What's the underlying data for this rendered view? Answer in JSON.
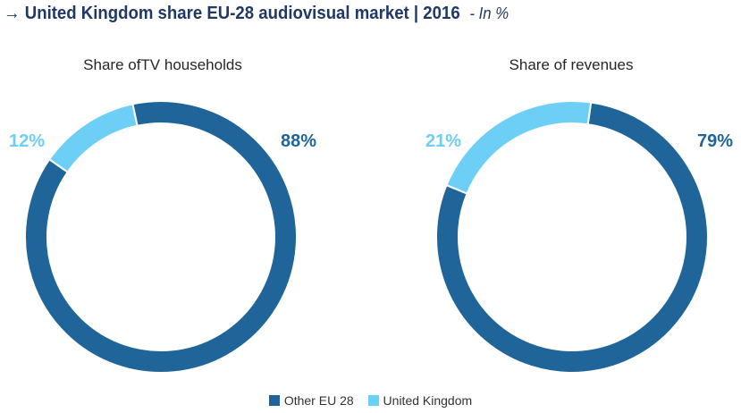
{
  "header": {
    "arrow": "→",
    "title": "United Kingdom share EU-28 audiovisual market | 2016",
    "unit": "- In %"
  },
  "colors": {
    "other": "#1f6599",
    "uk": "#6ecff6",
    "title": "#1f3864"
  },
  "chart_data": [
    {
      "type": "pie",
      "style": "donut",
      "title": "Share ofTV households",
      "categories": [
        "Other EU 28",
        "United Kingdom"
      ],
      "values": [
        88,
        12
      ],
      "labels": [
        "88%",
        "12%"
      ]
    },
    {
      "type": "pie",
      "style": "donut",
      "title": "Share of revenues",
      "categories": [
        "Other EU 28",
        "United Kingdom"
      ],
      "values": [
        79,
        21
      ],
      "labels": [
        "79%",
        "21%"
      ]
    }
  ],
  "legend": {
    "position": "bottom",
    "items": [
      {
        "label": "Other EU 28",
        "color": "#1f6599"
      },
      {
        "label": "United Kingdom",
        "color": "#6ecff6"
      }
    ]
  }
}
